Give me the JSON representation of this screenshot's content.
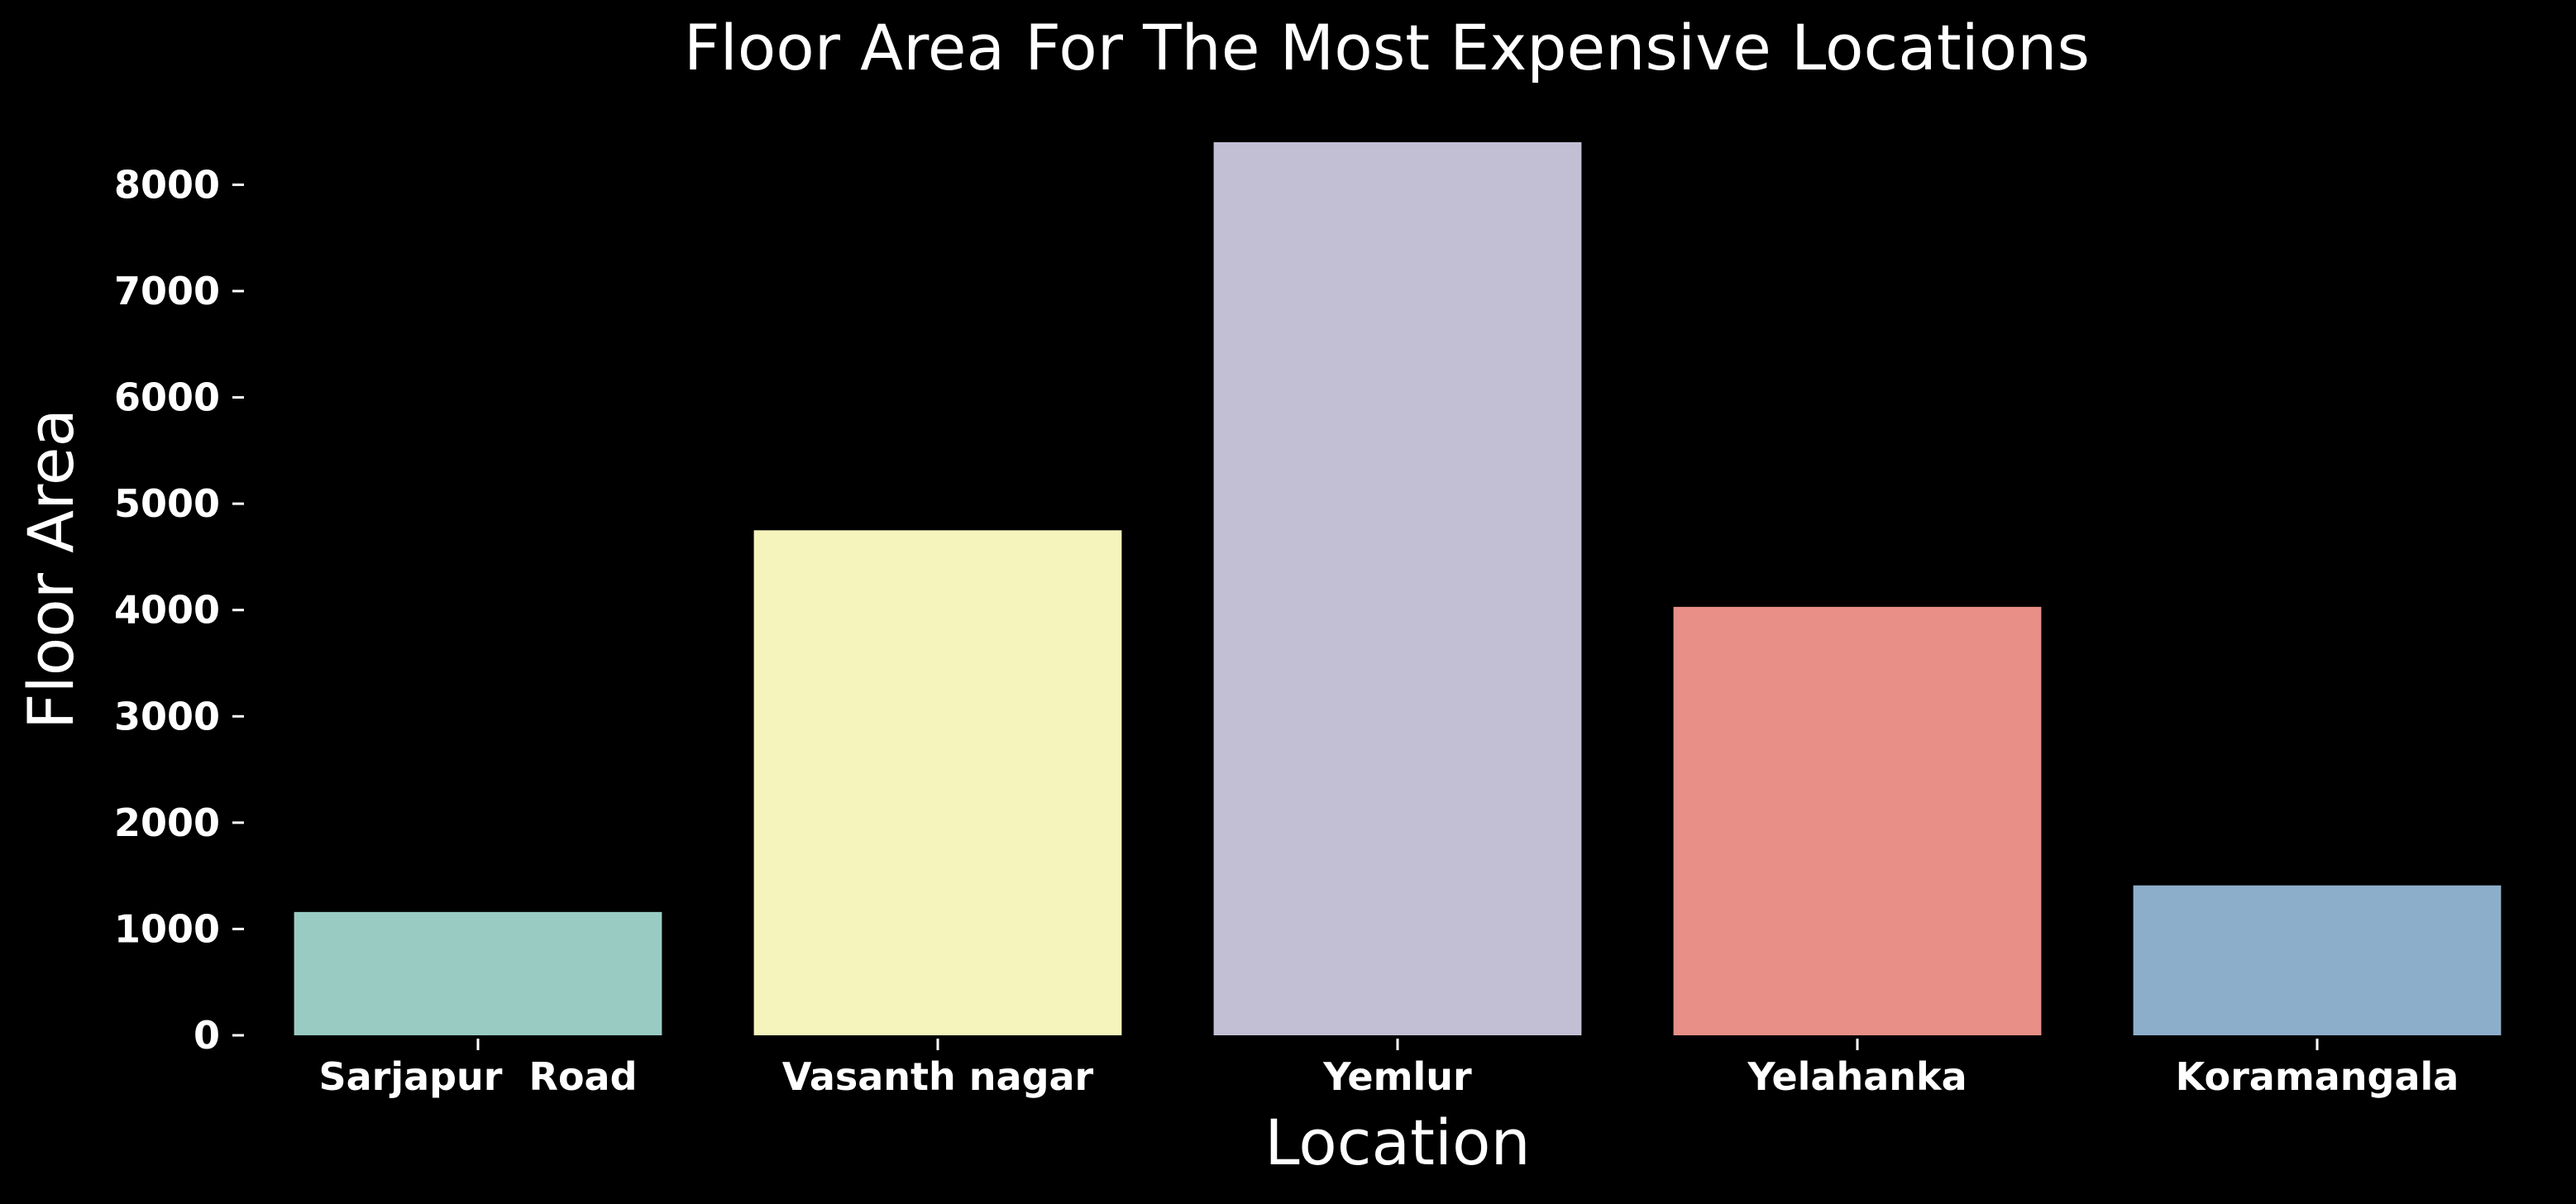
{
  "chart_data": {
    "type": "bar",
    "title": "Floor Area For The Most Expensive Locations",
    "xlabel": "Location",
    "ylabel": "Floor Area",
    "categories": [
      "Sarjapur  Road",
      "Vasanth nagar",
      "Yemlur",
      "Yelahanka",
      "Koramangala"
    ],
    "values": [
      1160,
      4750,
      8400,
      4030,
      1410
    ],
    "bar_colors": [
      "#99cbc3",
      "#f5f4bc",
      "#c2bfd5",
      "#e88f87",
      "#8daeca"
    ],
    "yticks": [
      0,
      1000,
      2000,
      3000,
      4000,
      5000,
      6000,
      7000,
      8000
    ],
    "ylim": [
      0,
      8400
    ],
    "grid": false,
    "background": "#000000",
    "text_color": "#ffffff"
  }
}
